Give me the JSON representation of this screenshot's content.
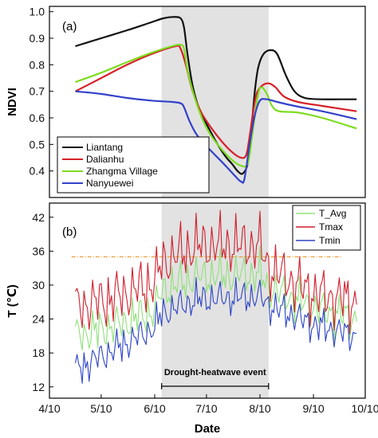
{
  "chart_data": [
    {
      "panel_label": "(a)",
      "type": "line",
      "ylabel": "NDVI",
      "ylim": [
        0.3,
        1.02
      ],
      "yticks": [
        0.4,
        0.5,
        0.6,
        0.7,
        0.8,
        0.9,
        1.0
      ],
      "ytick_labels": [
        "0.4",
        "0.5",
        "0.6",
        "0.7",
        "0.8",
        "0.9",
        "1.0"
      ],
      "xlim": [
        "2018-04-10",
        "2018-10-10"
      ],
      "shaded_period": [
        "2018-06-14",
        "2018-08-15"
      ],
      "legend_position": "bottom-left",
      "series": [
        {
          "name": "Liantang",
          "color": "#111111",
          "points": [
            [
              "2018-04-25",
              0.87
            ],
            [
              "2018-05-10",
              0.9
            ],
            [
              "2018-05-25",
              0.93
            ],
            [
              "2018-06-08",
              0.96
            ],
            [
              "2018-06-15",
              0.975
            ],
            [
              "2018-06-21",
              0.98
            ],
            [
              "2018-06-25",
              0.975
            ],
            [
              "2018-06-27",
              0.94
            ],
            [
              "2018-06-29",
              0.84
            ],
            [
              "2018-07-02",
              0.72
            ],
            [
              "2018-07-06",
              0.63
            ],
            [
              "2018-07-11",
              0.565
            ],
            [
              "2018-07-16",
              0.505
            ],
            [
              "2018-07-21",
              0.455
            ],
            [
              "2018-07-25",
              0.425
            ],
            [
              "2018-07-28",
              0.4
            ],
            [
              "2018-07-31",
              0.39
            ],
            [
              "2018-08-03",
              0.43
            ],
            [
              "2018-08-05",
              0.55
            ],
            [
              "2018-08-07",
              0.7
            ],
            [
              "2018-08-09",
              0.79
            ],
            [
              "2018-08-12",
              0.84
            ],
            [
              "2018-08-16",
              0.855
            ],
            [
              "2018-08-20",
              0.84
            ],
            [
              "2018-08-25",
              0.76
            ],
            [
              "2018-08-30",
              0.7
            ],
            [
              "2018-09-05",
              0.675
            ],
            [
              "2018-09-15",
              0.67
            ],
            [
              "2018-09-25",
              0.67
            ],
            [
              "2018-10-05",
              0.67
            ]
          ]
        },
        {
          "name": "Dalianhu",
          "color": "#d62028",
          "points": [
            [
              "2018-04-25",
              0.7
            ],
            [
              "2018-05-10",
              0.75
            ],
            [
              "2018-05-25",
              0.8
            ],
            [
              "2018-06-08",
              0.84
            ],
            [
              "2018-06-22",
              0.87
            ],
            [
              "2018-06-25",
              0.86
            ],
            [
              "2018-06-28",
              0.8
            ],
            [
              "2018-07-02",
              0.7
            ],
            [
              "2018-07-07",
              0.62
            ],
            [
              "2018-07-13",
              0.56
            ],
            [
              "2018-07-19",
              0.51
            ],
            [
              "2018-07-25",
              0.47
            ],
            [
              "2018-07-30",
              0.45
            ],
            [
              "2018-08-02",
              0.46
            ],
            [
              "2018-08-04",
              0.53
            ],
            [
              "2018-08-06",
              0.62
            ],
            [
              "2018-08-08",
              0.69
            ],
            [
              "2018-08-11",
              0.72
            ],
            [
              "2018-08-15",
              0.73
            ],
            [
              "2018-08-19",
              0.715
            ],
            [
              "2018-08-24",
              0.68
            ],
            [
              "2018-09-01",
              0.66
            ],
            [
              "2018-09-15",
              0.645
            ],
            [
              "2018-10-05",
              0.625
            ]
          ]
        },
        {
          "name": "Zhangma Village",
          "color": "#7ddc1f",
          "points": [
            [
              "2018-04-25",
              0.735
            ],
            [
              "2018-05-10",
              0.77
            ],
            [
              "2018-05-25",
              0.81
            ],
            [
              "2018-06-08",
              0.845
            ],
            [
              "2018-06-20",
              0.87
            ],
            [
              "2018-06-25",
              0.875
            ],
            [
              "2018-06-27",
              0.86
            ],
            [
              "2018-06-29",
              0.78
            ],
            [
              "2018-07-03",
              0.68
            ],
            [
              "2018-07-08",
              0.59
            ],
            [
              "2018-07-13",
              0.53
            ],
            [
              "2018-07-19",
              0.48
            ],
            [
              "2018-07-25",
              0.44
            ],
            [
              "2018-07-30",
              0.42
            ],
            [
              "2018-08-03",
              0.43
            ],
            [
              "2018-08-06",
              0.56
            ],
            [
              "2018-08-09",
              0.69
            ],
            [
              "2018-08-11",
              0.715
            ],
            [
              "2018-08-14",
              0.69
            ],
            [
              "2018-08-17",
              0.645
            ],
            [
              "2018-08-21",
              0.625
            ],
            [
              "2018-09-01",
              0.62
            ],
            [
              "2018-09-15",
              0.6
            ],
            [
              "2018-10-05",
              0.56
            ]
          ]
        },
        {
          "name": "Nanyuewei",
          "color": "#3341c9",
          "points": [
            [
              "2018-04-25",
              0.7
            ],
            [
              "2018-05-10",
              0.69
            ],
            [
              "2018-05-25",
              0.675
            ],
            [
              "2018-06-08",
              0.665
            ],
            [
              "2018-06-20",
              0.66
            ],
            [
              "2018-06-25",
              0.655
            ],
            [
              "2018-06-27",
              0.64
            ],
            [
              "2018-06-30",
              0.59
            ],
            [
              "2018-07-04",
              0.54
            ],
            [
              "2018-07-09",
              0.5
            ],
            [
              "2018-07-15",
              0.46
            ],
            [
              "2018-07-21",
              0.42
            ],
            [
              "2018-07-26",
              0.385
            ],
            [
              "2018-07-30",
              0.36
            ],
            [
              "2018-08-01",
              0.37
            ],
            [
              "2018-08-04",
              0.5
            ],
            [
              "2018-08-07",
              0.61
            ],
            [
              "2018-08-10",
              0.665
            ],
            [
              "2018-08-14",
              0.67
            ],
            [
              "2018-08-20",
              0.66
            ],
            [
              "2018-08-30",
              0.645
            ],
            [
              "2018-09-15",
              0.625
            ],
            [
              "2018-10-05",
              0.595
            ]
          ]
        }
      ]
    },
    {
      "panel_label": "(b)",
      "type": "line",
      "ylabel": "T (℃)",
      "ylim": [
        10,
        44.5
      ],
      "yticks": [
        12,
        18,
        24,
        30,
        36,
        42
      ],
      "ytick_labels": [
        "12",
        "18",
        "24",
        "30",
        "36",
        "42"
      ],
      "xlabel": "Date",
      "xlim": [
        "2018-04-10",
        "2018-10-10"
      ],
      "xticks": [
        "2018-04-10",
        "2018-05-10",
        "2018-06-10",
        "2018-07-10",
        "2018-08-10",
        "2018-09-10",
        "2018-10-10"
      ],
      "xtick_labels": [
        "4/10",
        "5/10",
        "6/10",
        "7/10",
        "8/10",
        "9/10",
        "10/10"
      ],
      "shaded_period": [
        "2018-06-14",
        "2018-08-15"
      ],
      "reference_line": {
        "y": 35,
        "color": "#e8a040"
      },
      "annotation": {
        "text": "Drought-heatwave event",
        "from": "2018-06-14",
        "to": "2018-08-15"
      },
      "legend_position": "top-right",
      "start_date": "2018-04-25",
      "end_date": "2018-10-05",
      "series": [
        {
          "name": "T_Avg",
          "color": "#8fe07a",
          "anchors": [
            [
              "2018-04-25",
              21
            ],
            [
              "2018-05-20",
              23
            ],
            [
              "2018-06-10",
              25.5
            ],
            [
              "2018-06-14",
              29
            ],
            [
              "2018-07-05",
              31.5
            ],
            [
              "2018-08-10",
              32
            ],
            [
              "2018-08-15",
              29.5
            ],
            [
              "2018-09-10",
              26
            ],
            [
              "2018-10-05",
              24
            ]
          ]
        },
        {
          "name": "Tmax",
          "color": "#d21e2c",
          "anchors": [
            [
              "2018-04-25",
              26
            ],
            [
              "2018-05-20",
              28
            ],
            [
              "2018-06-10",
              30.5
            ],
            [
              "2018-06-14",
              34
            ],
            [
              "2018-07-05",
              37
            ],
            [
              "2018-08-10",
              37
            ],
            [
              "2018-08-15",
              33
            ],
            [
              "2018-09-10",
              28.5
            ],
            [
              "2018-10-05",
              27
            ]
          ]
        },
        {
          "name": "Tmin",
          "color": "#2d44c6",
          "anchors": [
            [
              "2018-04-25",
              15
            ],
            [
              "2018-05-20",
              19
            ],
            [
              "2018-06-10",
              22.5
            ],
            [
              "2018-06-14",
              25
            ],
            [
              "2018-07-05",
              27.5
            ],
            [
              "2018-08-10",
              28
            ],
            [
              "2018-08-15",
              26.5
            ],
            [
              "2018-09-10",
              23
            ],
            [
              "2018-10-05",
              21
            ]
          ]
        }
      ]
    }
  ]
}
